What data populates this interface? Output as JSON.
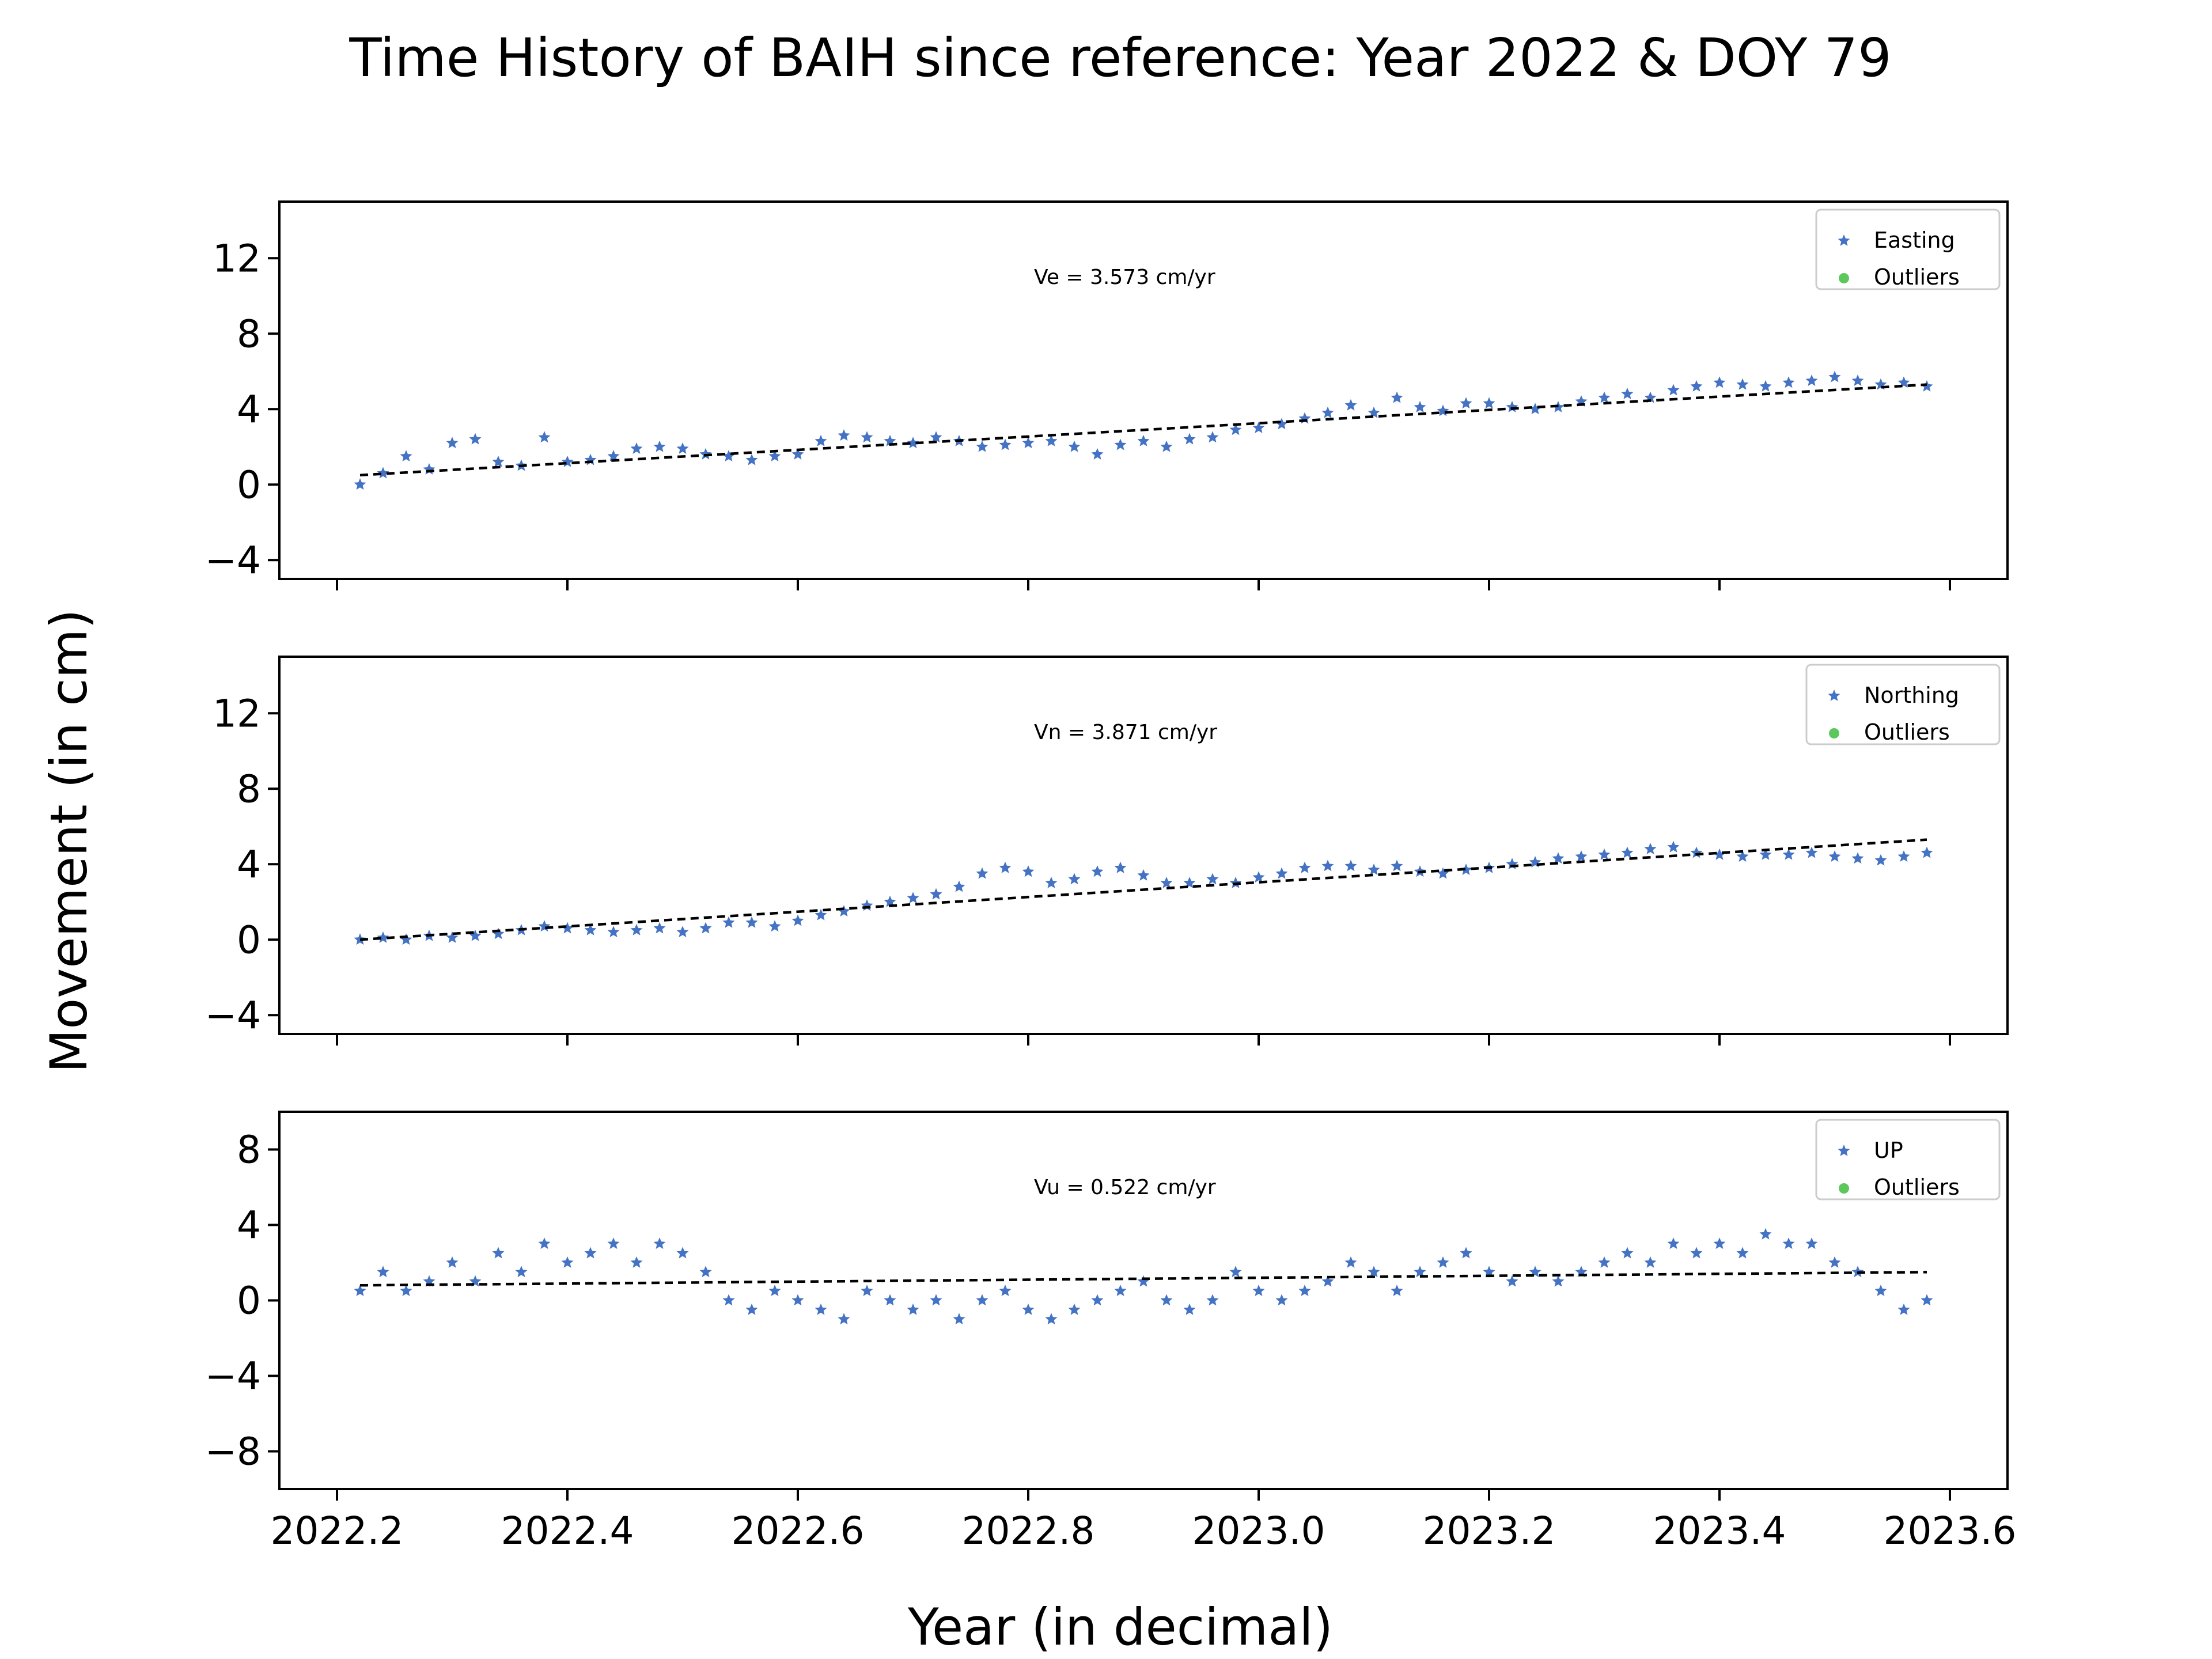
{
  "figure": {
    "title": "Time History of BAIH since reference: Year 2022 & DOY 79",
    "ylabel": "Movement (in cm)",
    "xlabel": "Year (in decimal)",
    "xlim": [
      2022.15,
      2023.65
    ],
    "xticks": [
      2022.2,
      2022.4,
      2022.6,
      2022.8,
      2023.0,
      2023.2,
      2023.4,
      2023.6
    ],
    "xtick_labels": [
      "2022.2",
      "2022.4",
      "2022.6",
      "2022.8",
      "2023.0",
      "2023.2",
      "2023.4",
      "2023.6"
    ],
    "point_color": "#4472c4",
    "outlier_color": "#5cc85c",
    "trend_color": "#000000"
  },
  "chart_data": [
    {
      "type": "scatter",
      "panel": "east",
      "series": [
        {
          "name": "Easting",
          "x": [
            2022.22,
            2022.24,
            2022.26,
            2022.28,
            2022.3,
            2022.32,
            2022.34,
            2022.36,
            2022.38,
            2022.4,
            2022.42,
            2022.44,
            2022.46,
            2022.48,
            2022.5,
            2022.52,
            2022.54,
            2022.56,
            2022.58,
            2022.6,
            2022.62,
            2022.64,
            2022.66,
            2022.68,
            2022.7,
            2022.72,
            2022.74,
            2022.76,
            2022.78,
            2022.8,
            2022.82,
            2022.84,
            2022.86,
            2022.88,
            2022.9,
            2022.92,
            2022.94,
            2022.96,
            2022.98,
            2023.0,
            2023.02,
            2023.04,
            2023.06,
            2023.08,
            2023.1,
            2023.12,
            2023.14,
            2023.16,
            2023.18,
            2023.2,
            2023.22,
            2023.24,
            2023.26,
            2023.28,
            2023.3,
            2023.32,
            2023.34,
            2023.36,
            2023.38,
            2023.4,
            2023.42,
            2023.44,
            2023.46,
            2023.48,
            2023.5,
            2023.52,
            2023.54,
            2023.56,
            2023.58
          ],
          "y": [
            0.0,
            0.6,
            1.5,
            0.8,
            2.2,
            2.4,
            1.2,
            1.0,
            2.5,
            1.2,
            1.3,
            1.5,
            1.9,
            2.0,
            1.9,
            1.6,
            1.5,
            1.3,
            1.5,
            1.6,
            2.3,
            2.6,
            2.5,
            2.3,
            2.2,
            2.5,
            2.3,
            2.0,
            2.1,
            2.2,
            2.3,
            2.0,
            1.6,
            2.1,
            2.3,
            2.0,
            2.4,
            2.5,
            2.9,
            3.0,
            3.2,
            3.5,
            3.8,
            4.2,
            3.8,
            4.6,
            4.1,
            3.9,
            4.3,
            4.3,
            4.1,
            4.0,
            4.1,
            4.4,
            4.6,
            4.8,
            4.6,
            5.0,
            5.2,
            5.4,
            5.3,
            5.2,
            5.4,
            5.5,
            5.7,
            5.5,
            5.3,
            5.4,
            5.2
          ]
        }
      ],
      "outliers": {
        "name": "Outliers",
        "x": [],
        "y": []
      },
      "annotation": "Ve =  3.573 cm/yr",
      "velocity": 3.573,
      "trend": [
        [
          2022.22,
          0.5
        ],
        [
          2023.58,
          5.3
        ]
      ],
      "ylim": [
        -5,
        15
      ],
      "yticks": [
        -4,
        0,
        4,
        8,
        12
      ],
      "ytick_labels": [
        "−4",
        "0",
        "4",
        "8",
        "12"
      ],
      "legend": "top-right"
    },
    {
      "type": "scatter",
      "panel": "north",
      "series": [
        {
          "name": "Northing",
          "x": [
            2022.22,
            2022.24,
            2022.26,
            2022.28,
            2022.3,
            2022.32,
            2022.34,
            2022.36,
            2022.38,
            2022.4,
            2022.42,
            2022.44,
            2022.46,
            2022.48,
            2022.5,
            2022.52,
            2022.54,
            2022.56,
            2022.58,
            2022.6,
            2022.62,
            2022.64,
            2022.66,
            2022.68,
            2022.7,
            2022.72,
            2022.74,
            2022.76,
            2022.78,
            2022.8,
            2022.82,
            2022.84,
            2022.86,
            2022.88,
            2022.9,
            2022.92,
            2022.94,
            2022.96,
            2022.98,
            2023.0,
            2023.02,
            2023.04,
            2023.06,
            2023.08,
            2023.1,
            2023.12,
            2023.14,
            2023.16,
            2023.18,
            2023.2,
            2023.22,
            2023.24,
            2023.26,
            2023.28,
            2023.3,
            2023.32,
            2023.34,
            2023.36,
            2023.38,
            2023.4,
            2023.42,
            2023.44,
            2023.46,
            2023.48,
            2023.5,
            2023.52,
            2023.54,
            2023.56,
            2023.58
          ],
          "y": [
            0.0,
            0.1,
            0.0,
            0.2,
            0.1,
            0.2,
            0.3,
            0.5,
            0.7,
            0.6,
            0.5,
            0.4,
            0.5,
            0.6,
            0.4,
            0.6,
            0.9,
            0.9,
            0.7,
            1.0,
            1.3,
            1.5,
            1.8,
            2.0,
            2.2,
            2.4,
            2.8,
            3.5,
            3.8,
            3.6,
            3.0,
            3.2,
            3.6,
            3.8,
            3.4,
            3.0,
            3.0,
            3.2,
            3.0,
            3.3,
            3.5,
            3.8,
            3.9,
            3.9,
            3.7,
            3.9,
            3.6,
            3.5,
            3.7,
            3.8,
            4.0,
            4.1,
            4.3,
            4.4,
            4.5,
            4.6,
            4.8,
            4.9,
            4.6,
            4.5,
            4.4,
            4.5,
            4.5,
            4.6,
            4.4,
            4.3,
            4.2,
            4.4,
            4.6
          ]
        }
      ],
      "outliers": {
        "name": "Outliers",
        "x": [],
        "y": []
      },
      "annotation": "Vn =  3.871 cm/yr",
      "velocity": 3.871,
      "trend": [
        [
          2022.22,
          0.0
        ],
        [
          2023.58,
          5.3
        ]
      ],
      "ylim": [
        -5,
        15
      ],
      "yticks": [
        -4,
        0,
        4,
        8,
        12
      ],
      "ytick_labels": [
        "−4",
        "0",
        "4",
        "8",
        "12"
      ],
      "legend": "top-right"
    },
    {
      "type": "scatter",
      "panel": "up",
      "series": [
        {
          "name": "UP",
          "x": [
            2022.22,
            2022.24,
            2022.26,
            2022.28,
            2022.3,
            2022.32,
            2022.34,
            2022.36,
            2022.38,
            2022.4,
            2022.42,
            2022.44,
            2022.46,
            2022.48,
            2022.5,
            2022.52,
            2022.54,
            2022.56,
            2022.58,
            2022.6,
            2022.62,
            2022.64,
            2022.66,
            2022.68,
            2022.7,
            2022.72,
            2022.74,
            2022.76,
            2022.78,
            2022.8,
            2022.82,
            2022.84,
            2022.86,
            2022.88,
            2022.9,
            2022.92,
            2022.94,
            2022.96,
            2022.98,
            2023.0,
            2023.02,
            2023.04,
            2023.06,
            2023.08,
            2023.1,
            2023.12,
            2023.14,
            2023.16,
            2023.18,
            2023.2,
            2023.22,
            2023.24,
            2023.26,
            2023.28,
            2023.3,
            2023.32,
            2023.34,
            2023.36,
            2023.38,
            2023.4,
            2023.42,
            2023.44,
            2023.46,
            2023.48,
            2023.5,
            2023.52,
            2023.54,
            2023.56,
            2023.58
          ],
          "y": [
            0.5,
            1.5,
            0.5,
            1.0,
            2.0,
            1.0,
            2.5,
            1.5,
            3.0,
            2.0,
            2.5,
            3.0,
            2.0,
            3.0,
            2.5,
            1.5,
            0.0,
            -0.5,
            0.5,
            0.0,
            -0.5,
            -1.0,
            0.5,
            0.0,
            -0.5,
            0.0,
            -1.0,
            0.0,
            0.5,
            -0.5,
            -1.0,
            -0.5,
            0.0,
            0.5,
            1.0,
            0.0,
            -0.5,
            0.0,
            1.5,
            0.5,
            0.0,
            0.5,
            1.0,
            2.0,
            1.5,
            0.5,
            1.5,
            2.0,
            2.5,
            1.5,
            1.0,
            1.5,
            1.0,
            1.5,
            2.0,
            2.5,
            2.0,
            3.0,
            2.5,
            3.0,
            2.5,
            3.5,
            3.0,
            3.0,
            2.0,
            1.5,
            0.5,
            -0.5,
            0.0
          ]
        }
      ],
      "outliers": {
        "name": "Outliers",
        "x": [],
        "y": []
      },
      "annotation": "Vu =  0.522 cm/yr",
      "velocity": 0.522,
      "trend": [
        [
          2022.22,
          0.8
        ],
        [
          2023.58,
          1.5
        ]
      ],
      "ylim": [
        -10,
        10
      ],
      "yticks": [
        -8,
        -4,
        0,
        4,
        8
      ],
      "ytick_labels": [
        "−8",
        "−4",
        "0",
        "4",
        "8"
      ],
      "legend": "top-right"
    }
  ]
}
